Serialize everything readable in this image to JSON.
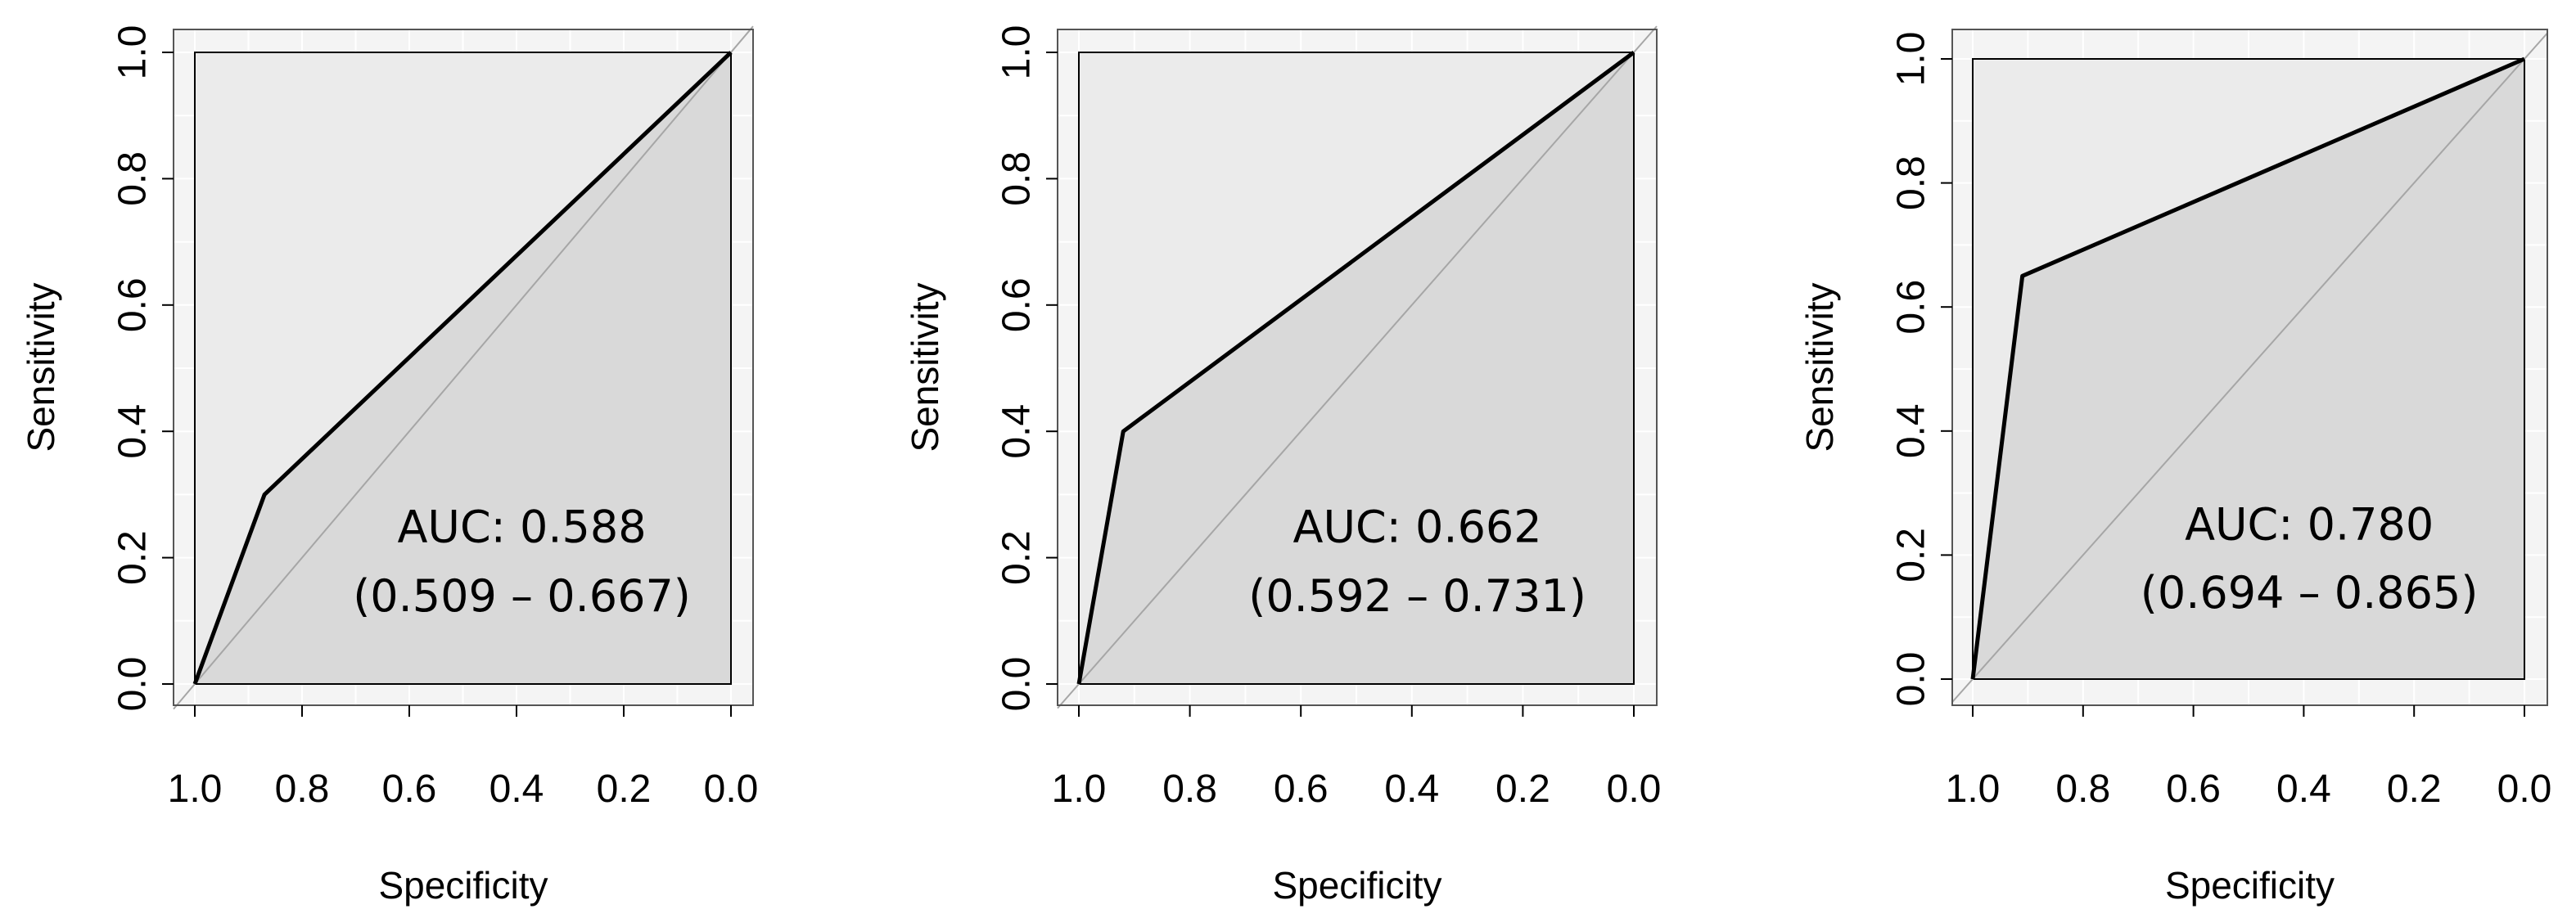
{
  "chart_data": [
    {
      "type": "line",
      "xlabel": "Specificity",
      "ylabel": "Sensitivity",
      "xlim": [
        1.0,
        0.0
      ],
      "ylim": [
        0.0,
        1.0
      ],
      "x_reversed": true,
      "x_ticks": [
        "1.0",
        "0.8",
        "0.6",
        "0.4",
        "0.2",
        "0.0"
      ],
      "y_ticks": [
        "0.0",
        "0.2",
        "0.4",
        "0.6",
        "0.8",
        "1.0"
      ],
      "grid": true,
      "roc_curve": {
        "specificity": [
          1.0,
          0.87,
          0.0
        ],
        "sensitivity": [
          0.0,
          0.3,
          1.0
        ]
      },
      "diagonal": true,
      "auc_label": "AUC: 0.588",
      "ci_label": "(0.509 – 0.667)",
      "auc": 0.588,
      "ci": [
        0.509,
        0.667
      ]
    },
    {
      "type": "line",
      "xlabel": "Specificity",
      "ylabel": "Sensitivity",
      "xlim": [
        1.0,
        0.0
      ],
      "ylim": [
        0.0,
        1.0
      ],
      "x_reversed": true,
      "x_ticks": [
        "1.0",
        "0.8",
        "0.6",
        "0.4",
        "0.2",
        "0.0"
      ],
      "y_ticks": [
        "0.0",
        "0.2",
        "0.4",
        "0.6",
        "0.8",
        "1.0"
      ],
      "grid": true,
      "roc_curve": {
        "specificity": [
          1.0,
          0.92,
          0.0
        ],
        "sensitivity": [
          0.0,
          0.4,
          1.0
        ]
      },
      "diagonal": true,
      "auc_label": "AUC: 0.662",
      "ci_label": "(0.592 – 0.731)",
      "auc": 0.662,
      "ci": [
        0.592,
        0.731
      ]
    },
    {
      "type": "line",
      "xlabel": "Specificity",
      "ylabel": "Sensitivity",
      "xlim": [
        1.0,
        0.0
      ],
      "ylim": [
        0.0,
        1.0
      ],
      "x_reversed": true,
      "x_ticks": [
        "1.0",
        "0.8",
        "0.6",
        "0.4",
        "0.2",
        "0.0"
      ],
      "y_ticks": [
        "0.0",
        "0.2",
        "0.4",
        "0.6",
        "0.8",
        "1.0"
      ],
      "grid": true,
      "roc_curve": {
        "specificity": [
          1.0,
          0.91,
          0.0
        ],
        "sensitivity": [
          0.0,
          0.65,
          1.0
        ]
      },
      "diagonal": true,
      "auc_label": "AUC: 0.780",
      "ci_label": "(0.694 – 0.865)",
      "auc": 0.78,
      "ci": [
        0.694,
        0.865
      ]
    }
  ],
  "colors": {
    "background": "#ffffff",
    "outer_panel": "#f4f4f4",
    "upper_region": "#ebebeb",
    "under_curve": "#d9d9d9",
    "diagonal": "#a6a6a6",
    "curve": "#000000",
    "grid": "#ffffff",
    "text": "#000000"
  }
}
